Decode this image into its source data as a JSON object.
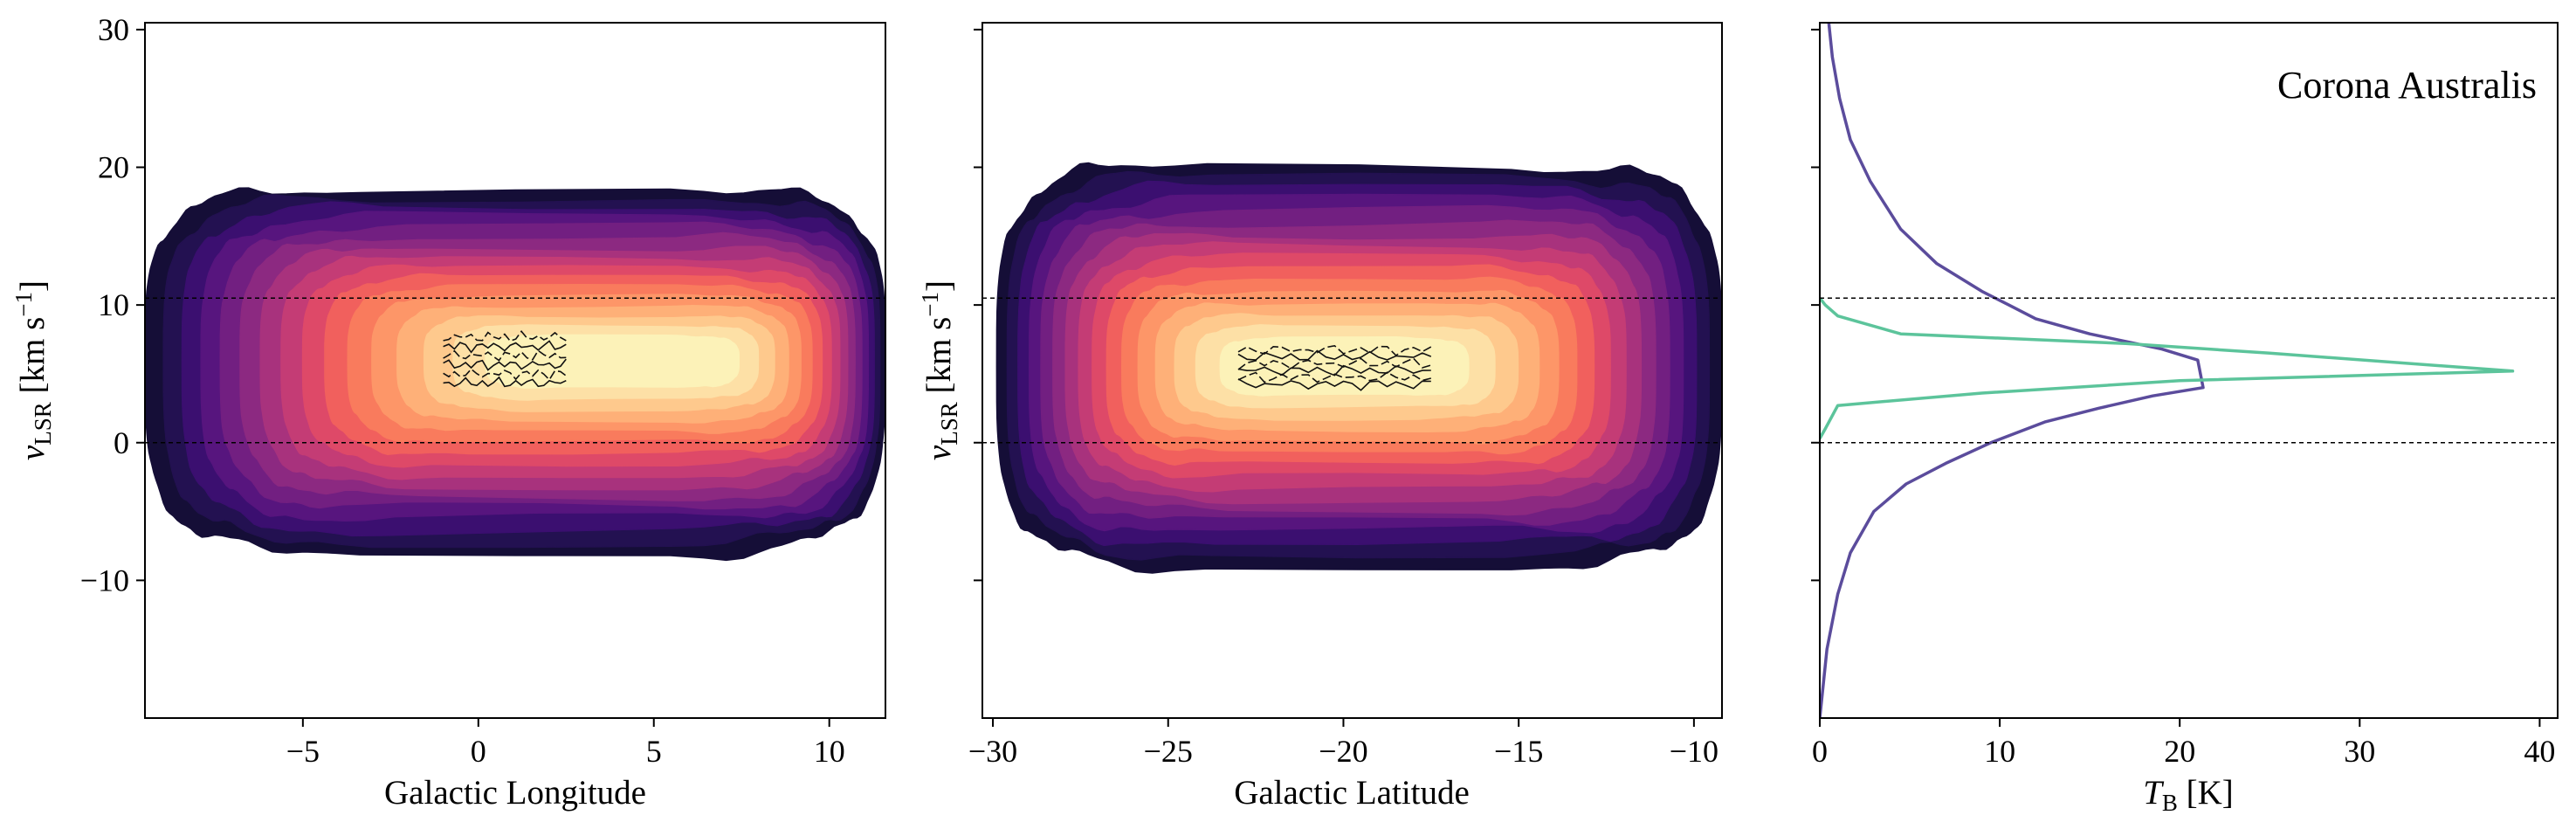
{
  "figure": {
    "annotation": "Corona Australis",
    "hlines_y": [
      0,
      10.5
    ]
  },
  "chart_data": [
    {
      "type": "heatmap",
      "title": "",
      "xlabel": "Galactic Longitude",
      "ylabel": "v_LSR [km s⁻¹]",
      "ylabel_parts": {
        "main": "v",
        "sub": "LSR",
        "unit": " [km s",
        "sup": "−1",
        "close": "]"
      },
      "xlim": [
        -9.5,
        11.6
      ],
      "ylim": [
        -20,
        30.5
      ],
      "xticks": [
        -5,
        0,
        5,
        10
      ],
      "xtick_labels": [
        "−5",
        "0",
        "5",
        "10"
      ],
      "yticks": [
        -10,
        0,
        10,
        20,
        30
      ],
      "ytick_labels": [
        "−10",
        "0",
        "10",
        "20",
        "30"
      ],
      "colormap": "magma",
      "emission": {
        "x_range": [
          -9.5,
          11.6
        ],
        "v_top_range": [
          17.5,
          19.5
        ],
        "v_bottom_range": [
          -5,
          -11
        ],
        "peak_x": 4.0,
        "peak_v": 6.0
      },
      "contour_region": {
        "x": [
          -1,
          2.5
        ],
        "v": [
          4,
          8
        ]
      }
    },
    {
      "type": "heatmap",
      "title": "",
      "xlabel": "Galactic Latitude",
      "ylabel": "v_LSR [km s⁻¹]",
      "ylabel_parts": {
        "main": "v",
        "sub": "LSR",
        "unit": " [km s",
        "sup": "−1",
        "close": "]"
      },
      "xlim": [
        -30.3,
        -9.2
      ],
      "ylim": [
        -20,
        30.5
      ],
      "xticks": [
        -30,
        -25,
        -20,
        -15,
        -10
      ],
      "xtick_labels": [
        "−30",
        "−25",
        "−20",
        "−15",
        "−10"
      ],
      "yticks": [
        -10,
        0,
        10,
        20,
        30
      ],
      "ytick_labels": [
        "",
        "",
        "",
        "",
        ""
      ],
      "colormap": "magma",
      "emission": {
        "x_range": [
          -29.9,
          -9.2
        ],
        "v_top_range": [
          17.5,
          23
        ],
        "v_bottom_range": [
          -5,
          -13
        ],
        "peak_x": -20.0,
        "peak_v": 5.5
      },
      "contour_region": {
        "x": [
          -23,
          -17.5
        ],
        "v": [
          4,
          7
        ]
      }
    },
    {
      "type": "line",
      "title": "",
      "xlabel": "T_B [K]",
      "xlabel_parts": {
        "main": "T",
        "sub": "B",
        "unit": " [K]"
      },
      "ylabel": "",
      "xlim": [
        0,
        41
      ],
      "ylim": [
        -20,
        30.5
      ],
      "xticks": [
        0,
        10,
        20,
        30,
        40
      ],
      "xtick_labels": [
        "0",
        "10",
        "20",
        "30",
        "40"
      ],
      "yticks": [
        -10,
        0,
        10,
        20,
        30
      ],
      "ytick_labels": [
        "",
        "",
        "",
        "",
        ""
      ],
      "series": [
        {
          "color": "#5b4c9c",
          "points": [
            [
              0.0,
              -20
            ],
            [
              0.4,
              -15
            ],
            [
              1.0,
              -11
            ],
            [
              1.7,
              -8
            ],
            [
              3.0,
              -5
            ],
            [
              4.8,
              -3
            ],
            [
              7.0,
              -1.5
            ],
            [
              9.5,
              0
            ],
            [
              12.5,
              1.5
            ],
            [
              15.5,
              2.5
            ],
            [
              18.5,
              3.4
            ],
            [
              21.3,
              4.0
            ],
            [
              21.0,
              6.0
            ],
            [
              19.0,
              6.8
            ],
            [
              15.0,
              7.9
            ],
            [
              12.0,
              9.0
            ],
            [
              10.5,
              10.0
            ],
            [
              9.0,
              11.0
            ],
            [
              6.5,
              13.0
            ],
            [
              4.5,
              15.5
            ],
            [
              2.8,
              19.0
            ],
            [
              1.7,
              22.0
            ],
            [
              1.1,
              25.0
            ],
            [
              0.7,
              28.0
            ],
            [
              0.5,
              30.5
            ]
          ]
        },
        {
          "color": "#5cc49b",
          "points": [
            [
              0.0,
              0.3
            ],
            [
              0.3,
              1.0
            ],
            [
              1.0,
              2.7
            ],
            [
              9.0,
              3.6
            ],
            [
              20.0,
              4.5
            ],
            [
              38.5,
              5.2
            ],
            [
              25.0,
              6.5
            ],
            [
              17.0,
              7.2
            ],
            [
              4.5,
              7.9
            ],
            [
              1.0,
              9.2
            ],
            [
              0.3,
              10.0
            ],
            [
              0.0,
              10.5
            ]
          ]
        }
      ]
    }
  ]
}
